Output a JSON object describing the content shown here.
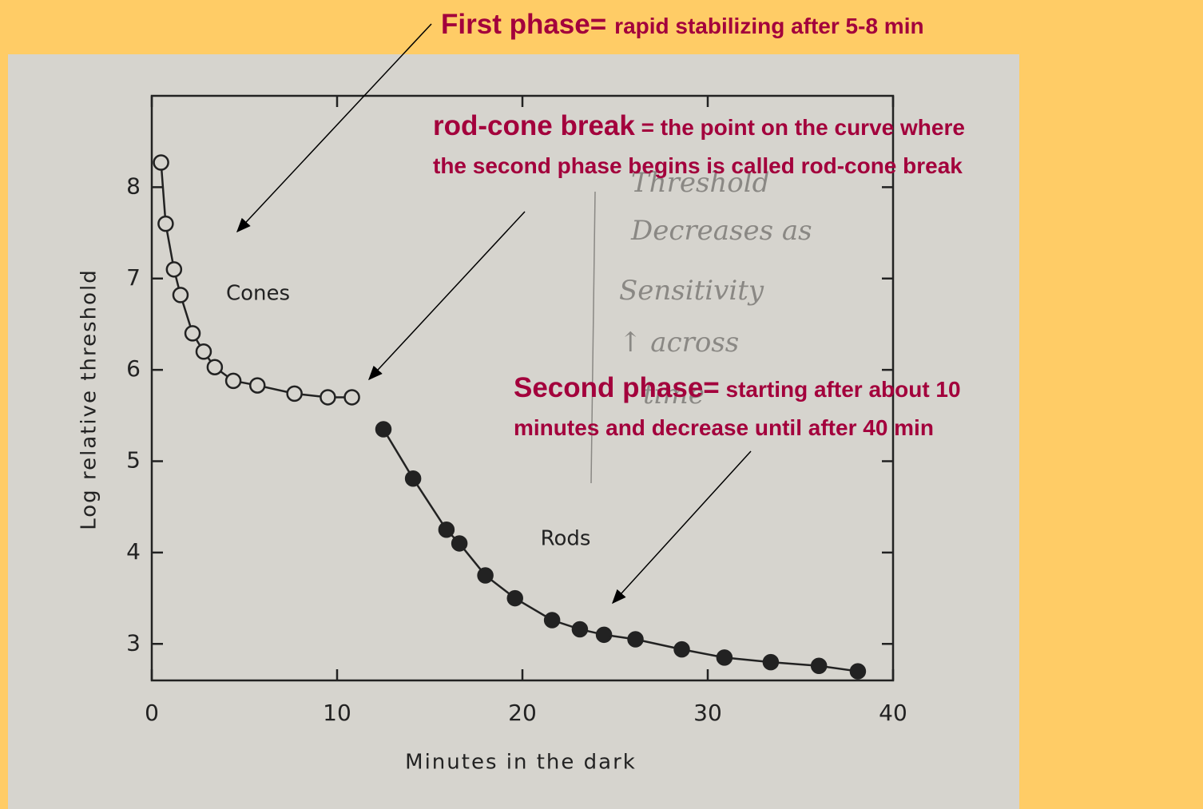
{
  "chart_data": {
    "type": "scatter",
    "xlabel": "Minutes in the dark",
    "ylabel": "Log relative threshold",
    "xlim": [
      0,
      40
    ],
    "xticks": [
      0,
      10,
      20,
      30,
      40
    ],
    "ylim": [
      2.6,
      9.0
    ],
    "yticks": [
      3,
      4,
      5,
      6,
      7,
      8
    ],
    "series": [
      {
        "name": "Cones",
        "color": "#222222",
        "filled": false,
        "x": [
          0.5,
          0.75,
          1.2,
          1.55,
          2.2,
          2.8,
          3.4,
          4.4,
          5.7,
          7.7,
          9.5,
          10.8
        ],
        "values": [
          8.27,
          7.6,
          7.1,
          6.82,
          6.4,
          6.2,
          6.03,
          5.88,
          5.83,
          5.74,
          5.7,
          5.7
        ]
      },
      {
        "name": "Rods",
        "color": "#222222",
        "filled": true,
        "x": [
          12.5,
          14.1,
          15.9,
          16.6,
          18.0,
          19.6,
          21.6,
          23.1,
          24.4,
          26.1,
          28.6,
          30.9,
          33.4,
          36.0,
          38.1
        ],
        "values": [
          5.35,
          4.81,
          4.25,
          4.1,
          3.75,
          3.5,
          3.26,
          3.16,
          3.1,
          3.05,
          2.94,
          2.85,
          2.8,
          2.76,
          2.7
        ]
      }
    ],
    "handwriting": [
      "Threshold",
      "Decreases as",
      "Sensitivity",
      "↑ across",
      "time"
    ]
  },
  "slide": {
    "notes": [
      {
        "head": "First phase=",
        "lines": [
          "rapid stabilizing after 5-8 min"
        ]
      },
      {
        "head": "rod-cone break",
        "lines": [
          " = the point on the curve where",
          "the second phase begins is called rod-cone break"
        ]
      },
      {
        "head": "Second phase=",
        "lines": [
          " starting after about 10",
          "minutes and decrease until after 40 min"
        ]
      }
    ]
  }
}
